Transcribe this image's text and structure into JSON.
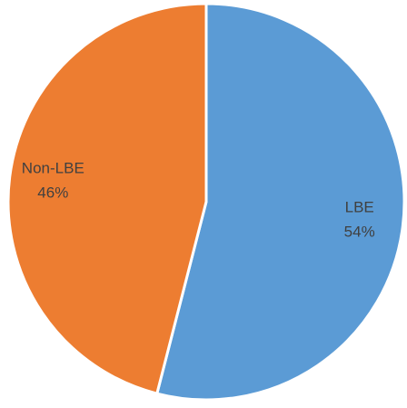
{
  "chart_data": {
    "type": "pie",
    "categories": [
      "LBE",
      "Non-LBE"
    ],
    "values": [
      54,
      46
    ],
    "value_labels": [
      "54%",
      "46%"
    ],
    "colors": [
      "#5B9BD5",
      "#ED7D31"
    ],
    "border_color": "#FFFFFF",
    "start_angle_deg": 0,
    "direction": "clockwise",
    "legend": "none",
    "title": ""
  }
}
